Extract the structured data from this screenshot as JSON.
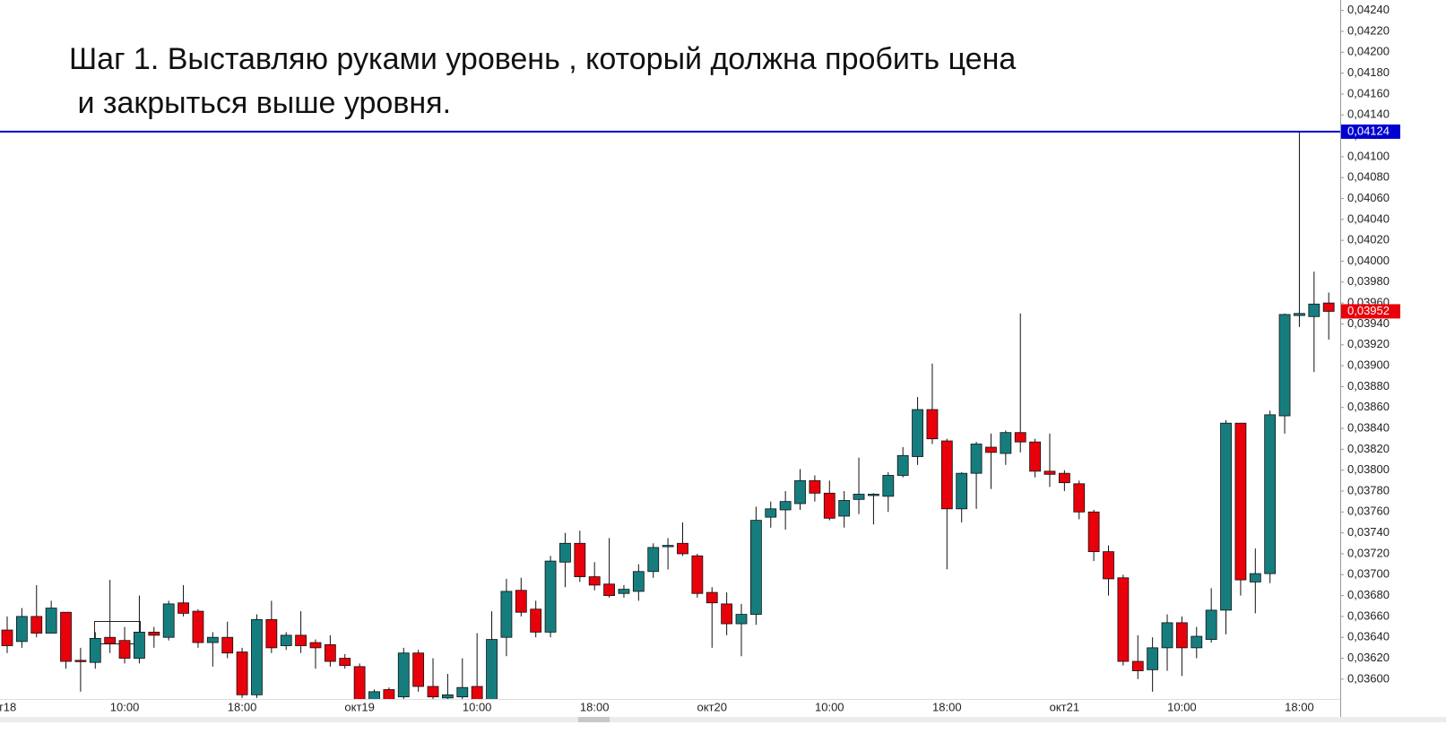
{
  "chart_data": {
    "type": "candlestick",
    "annotation": [
      "Шаг 1. Выставляю руками уровень , который должна пробить цена",
      " и закрыться выше уровня."
    ],
    "categories": [
      "т18",
      null,
      null,
      null,
      null,
      null,
      null,
      null,
      "10:00",
      null,
      null,
      null,
      null,
      null,
      null,
      null,
      "18:00",
      null,
      null,
      null,
      null,
      null,
      null,
      null,
      "окт19",
      null,
      null,
      null,
      null,
      null,
      null,
      null,
      "10:00",
      null,
      null,
      null,
      null,
      null,
      null,
      null,
      "18:00",
      null,
      null,
      null,
      null,
      null,
      null,
      null,
      "окт20",
      null,
      null,
      null,
      null,
      null,
      null,
      null,
      "10:00",
      null,
      null,
      null,
      null,
      null,
      null,
      null,
      "18:00",
      null,
      null,
      null,
      null,
      null,
      null,
      null,
      "окт21",
      null,
      null,
      null,
      null,
      null,
      null,
      null,
      "10:00",
      null,
      null,
      null,
      null,
      null,
      null,
      null,
      "18:00",
      null,
      null
    ],
    "open": [
      0.03647,
      0.03636,
      0.0366,
      0.03644,
      0.03664,
      0.03618,
      0.03616,
      0.0364,
      0.03637,
      0.0362,
      0.03645,
      0.0364,
      0.03673,
      0.03665,
      0.03635,
      0.0364,
      0.03626,
      0.03585,
      0.03657,
      0.03632,
      0.03642,
      0.03635,
      0.03633,
      0.0362,
      0.03612,
      0.0358,
      0.0359,
      0.03583,
      0.03625,
      0.03593,
      0.03582,
      0.03583,
      0.03593,
      0.0358,
      0.0364,
      0.03685,
      0.03667,
      0.03645,
      0.03712,
      0.0373,
      0.03698,
      0.03691,
      0.03682,
      0.03684,
      0.03703,
      0.03727,
      0.0373,
      0.03718,
      0.03683,
      0.03672,
      0.03653,
      0.03662,
      0.03755,
      0.03762,
      0.03768,
      0.0379,
      0.03778,
      0.03756,
      0.03772,
      0.03776,
      0.03775,
      0.03795,
      0.03813,
      0.03858,
      0.03828,
      0.03763,
      0.03797,
      0.03822,
      0.03816,
      0.03836,
      0.03827,
      0.03799,
      0.03797,
      0.03787,
      0.0376,
      0.03722,
      0.03697,
      0.03617,
      0.03609,
      0.0363,
      0.03654,
      0.0363,
      0.03638,
      0.03666,
      0.03845,
      0.03693,
      0.03701,
      0.03852,
      0.03948,
      0.03947,
      0.0396
    ],
    "high": [
      0.0366,
      0.03668,
      0.0369,
      0.03675,
      0.03664,
      0.0363,
      0.03645,
      0.03695,
      0.0365,
      0.0368,
      0.0365,
      0.03675,
      0.0369,
      0.03667,
      0.03645,
      0.03655,
      0.0363,
      0.03662,
      0.03675,
      0.03645,
      0.03665,
      0.03638,
      0.03642,
      0.03624,
      0.03615,
      0.0359,
      0.03592,
      0.0363,
      0.03628,
      0.0362,
      0.03605,
      0.0362,
      0.03644,
      0.03665,
      0.03696,
      0.03697,
      0.03675,
      0.03718,
      0.0374,
      0.03742,
      0.03712,
      0.03735,
      0.0369,
      0.0371,
      0.0373,
      0.03735,
      0.0375,
      0.0372,
      0.03688,
      0.03683,
      0.03672,
      0.03765,
      0.0377,
      0.0378,
      0.03801,
      0.03795,
      0.0379,
      0.0378,
      0.03812,
      0.03778,
      0.03798,
      0.03822,
      0.0387,
      0.03902,
      0.0383,
      0.03798,
      0.03827,
      0.03835,
      0.03838,
      0.0395,
      0.0383,
      0.03835,
      0.038,
      0.0379,
      0.03762,
      0.03728,
      0.037,
      0.03642,
      0.0364,
      0.03662,
      0.0366,
      0.0365,
      0.03687,
      0.03848,
      0.03845,
      0.03725,
      0.03857,
      0.0395,
      0.04124,
      0.0399,
      0.0397
    ],
    "low": [
      0.03625,
      0.0363,
      0.0364,
      0.03644,
      0.0361,
      0.03588,
      0.0361,
      0.03625,
      0.03615,
      0.03615,
      0.0363,
      0.03637,
      0.0366,
      0.0363,
      0.03612,
      0.0362,
      0.03582,
      0.03582,
      0.03625,
      0.03628,
      0.03625,
      0.0361,
      0.03612,
      0.0361,
      0.03578,
      0.03578,
      0.03578,
      0.0358,
      0.03588,
      0.0358,
      0.0358,
      0.0358,
      0.0358,
      0.0358,
      0.03622,
      0.0366,
      0.0364,
      0.0364,
      0.03688,
      0.03693,
      0.03685,
      0.03678,
      0.03678,
      0.03675,
      0.03697,
      0.03705,
      0.03718,
      0.03678,
      0.0363,
      0.03642,
      0.03622,
      0.03652,
      0.03745,
      0.03743,
      0.03762,
      0.0377,
      0.03752,
      0.03745,
      0.03758,
      0.03748,
      0.0376,
      0.03793,
      0.03805,
      0.03825,
      0.03705,
      0.0375,
      0.03763,
      0.03782,
      0.03805,
      0.03817,
      0.03793,
      0.03784,
      0.0378,
      0.03753,
      0.03713,
      0.0368,
      0.03613,
      0.036,
      0.03588,
      0.03608,
      0.03603,
      0.0362,
      0.03635,
      0.03643,
      0.0368,
      0.03663,
      0.03692,
      0.03835,
      0.03937,
      0.03894,
      0.03925
    ],
    "close": [
      0.03632,
      0.0366,
      0.03644,
      0.03668,
      0.03617,
      0.03617,
      0.03639,
      0.03634,
      0.0362,
      0.03645,
      0.03642,
      0.03672,
      0.03663,
      0.03635,
      0.0364,
      0.03625,
      0.03585,
      0.03657,
      0.0363,
      0.03642,
      0.03632,
      0.0363,
      0.03617,
      0.03613,
      0.0358,
      0.03588,
      0.0358,
      0.03625,
      0.03593,
      0.03583,
      0.03585,
      0.03592,
      0.0358,
      0.03638,
      0.03684,
      0.03664,
      0.03645,
      0.03713,
      0.0373,
      0.03698,
      0.0369,
      0.0368,
      0.03686,
      0.03703,
      0.03726,
      0.03728,
      0.0372,
      0.03682,
      0.03673,
      0.03653,
      0.03662,
      0.03752,
      0.03763,
      0.0377,
      0.0379,
      0.03778,
      0.03754,
      0.03771,
      0.03777,
      0.03777,
      0.03795,
      0.03814,
      0.03858,
      0.0383,
      0.03763,
      0.03797,
      0.03825,
      0.03817,
      0.03836,
      0.03827,
      0.03799,
      0.03796,
      0.03788,
      0.0376,
      0.03722,
      0.03696,
      0.03617,
      0.03608,
      0.0363,
      0.03654,
      0.0363,
      0.03641,
      0.03666,
      0.03845,
      0.03695,
      0.03701,
      0.03853,
      0.03949,
      0.0395,
      0.03959,
      0.03952
    ],
    "up_color": "#167d7f",
    "down_color": "#e8000b",
    "ylim": [
      0.03581,
      0.0425
    ],
    "yticks": [
      {
        "value": 0.036,
        "label": "0,03600"
      },
      {
        "value": 0.0362,
        "label": "0,03620"
      },
      {
        "value": 0.0364,
        "label": "0,03640"
      },
      {
        "value": 0.0366,
        "label": "0,03660"
      },
      {
        "value": 0.0368,
        "label": "0,03680"
      },
      {
        "value": 0.037,
        "label": "0,03700"
      },
      {
        "value": 0.0372,
        "label": "0,03720"
      },
      {
        "value": 0.0374,
        "label": "0,03740"
      },
      {
        "value": 0.0376,
        "label": "0,03760"
      },
      {
        "value": 0.0378,
        "label": "0,03780"
      },
      {
        "value": 0.038,
        "label": "0,03800"
      },
      {
        "value": 0.0382,
        "label": "0,03820"
      },
      {
        "value": 0.0384,
        "label": "0,03840"
      },
      {
        "value": 0.0386,
        "label": "0,03860"
      },
      {
        "value": 0.0388,
        "label": "0,03880"
      },
      {
        "value": 0.039,
        "label": "0,03900"
      },
      {
        "value": 0.0392,
        "label": "0,03920"
      },
      {
        "value": 0.0394,
        "label": "0,03940"
      },
      {
        "value": 0.0396,
        "label": "0,03960"
      },
      {
        "value": 0.0398,
        "label": "0,03980"
      },
      {
        "value": 0.04,
        "label": "0,04000"
      },
      {
        "value": 0.0402,
        "label": "0,04020"
      },
      {
        "value": 0.0404,
        "label": "0,04040"
      },
      {
        "value": 0.0406,
        "label": "0,04060"
      },
      {
        "value": 0.0408,
        "label": "0,04080"
      },
      {
        "value": 0.041,
        "label": "0,04100"
      },
      {
        "value": 0.0412,
        "label": "0,04120"
      },
      {
        "value": 0.0414,
        "label": "0,04140"
      },
      {
        "value": 0.0416,
        "label": "0,04160"
      },
      {
        "value": 0.0418,
        "label": "0,04180"
      },
      {
        "value": 0.042,
        "label": "0,04200"
      },
      {
        "value": 0.0422,
        "label": "0,04220"
      },
      {
        "value": 0.0424,
        "label": "0,04240"
      }
    ],
    "grid": false,
    "level": {
      "value": 0.04124,
      "label": "0,04124",
      "color": "#0000d0"
    },
    "last_price": {
      "value": 0.03952,
      "label": "0,03952"
    }
  }
}
